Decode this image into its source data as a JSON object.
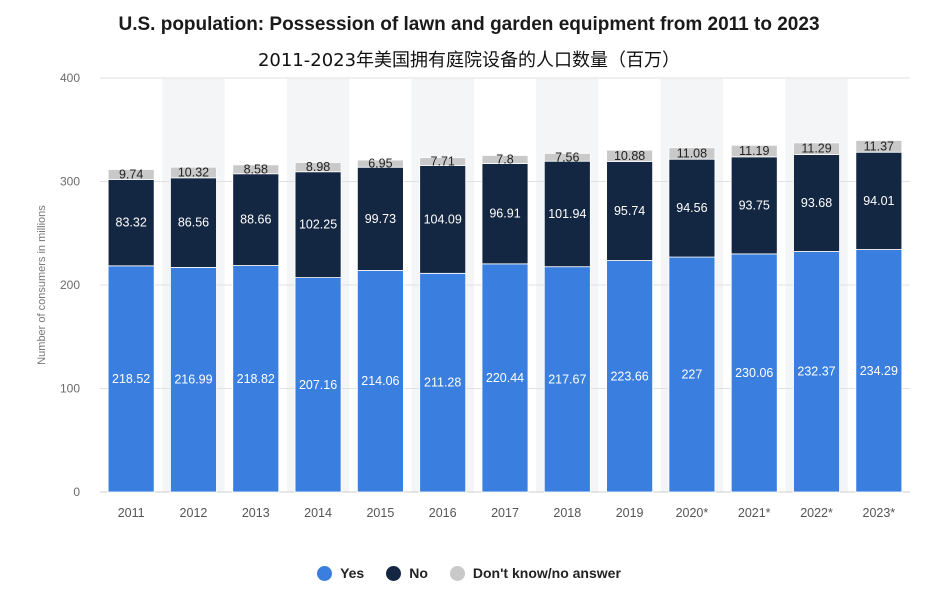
{
  "chart_data": {
    "type": "bar",
    "stacked": true,
    "title": "U.S. population: Possession of lawn and garden equipment from 2011 to 2023",
    "subtitle": "2011-2023年美国拥有庭院设备的人口数量（百万）",
    "xlabel": "",
    "ylabel": "Number of consumers in millions",
    "ylim": [
      0,
      400
    ],
    "yticks": [
      "0",
      "100",
      "200",
      "300",
      "400"
    ],
    "grid": true,
    "legend_position": "bottom",
    "categories": [
      "2011",
      "2012",
      "2013",
      "2014",
      "2015",
      "2016",
      "2017",
      "2018",
      "2019",
      "2020*",
      "2021*",
      "2022*",
      "2023*"
    ],
    "series": [
      {
        "name": "Yes",
        "color": "#3a7ee0",
        "label_color": "#ffffff",
        "values": [
          218.52,
          216.99,
          218.82,
          207.16,
          214.06,
          211.28,
          220.44,
          217.67,
          223.66,
          227,
          230.06,
          232.37,
          234.29
        ]
      },
      {
        "name": "No",
        "color": "#142742",
        "label_color": "#ffffff",
        "values": [
          83.32,
          86.56,
          88.66,
          102.25,
          99.73,
          104.09,
          96.91,
          101.94,
          95.74,
          94.56,
          93.75,
          93.68,
          94.01
        ]
      },
      {
        "name": "Don't know/no answer",
        "color": "#c9c9c9",
        "label_color": "#222222",
        "values": [
          9.74,
          10.32,
          8.58,
          8.98,
          6.95,
          7.71,
          7.8,
          7.56,
          10.88,
          11.08,
          11.19,
          11.29,
          11.37
        ]
      }
    ]
  }
}
